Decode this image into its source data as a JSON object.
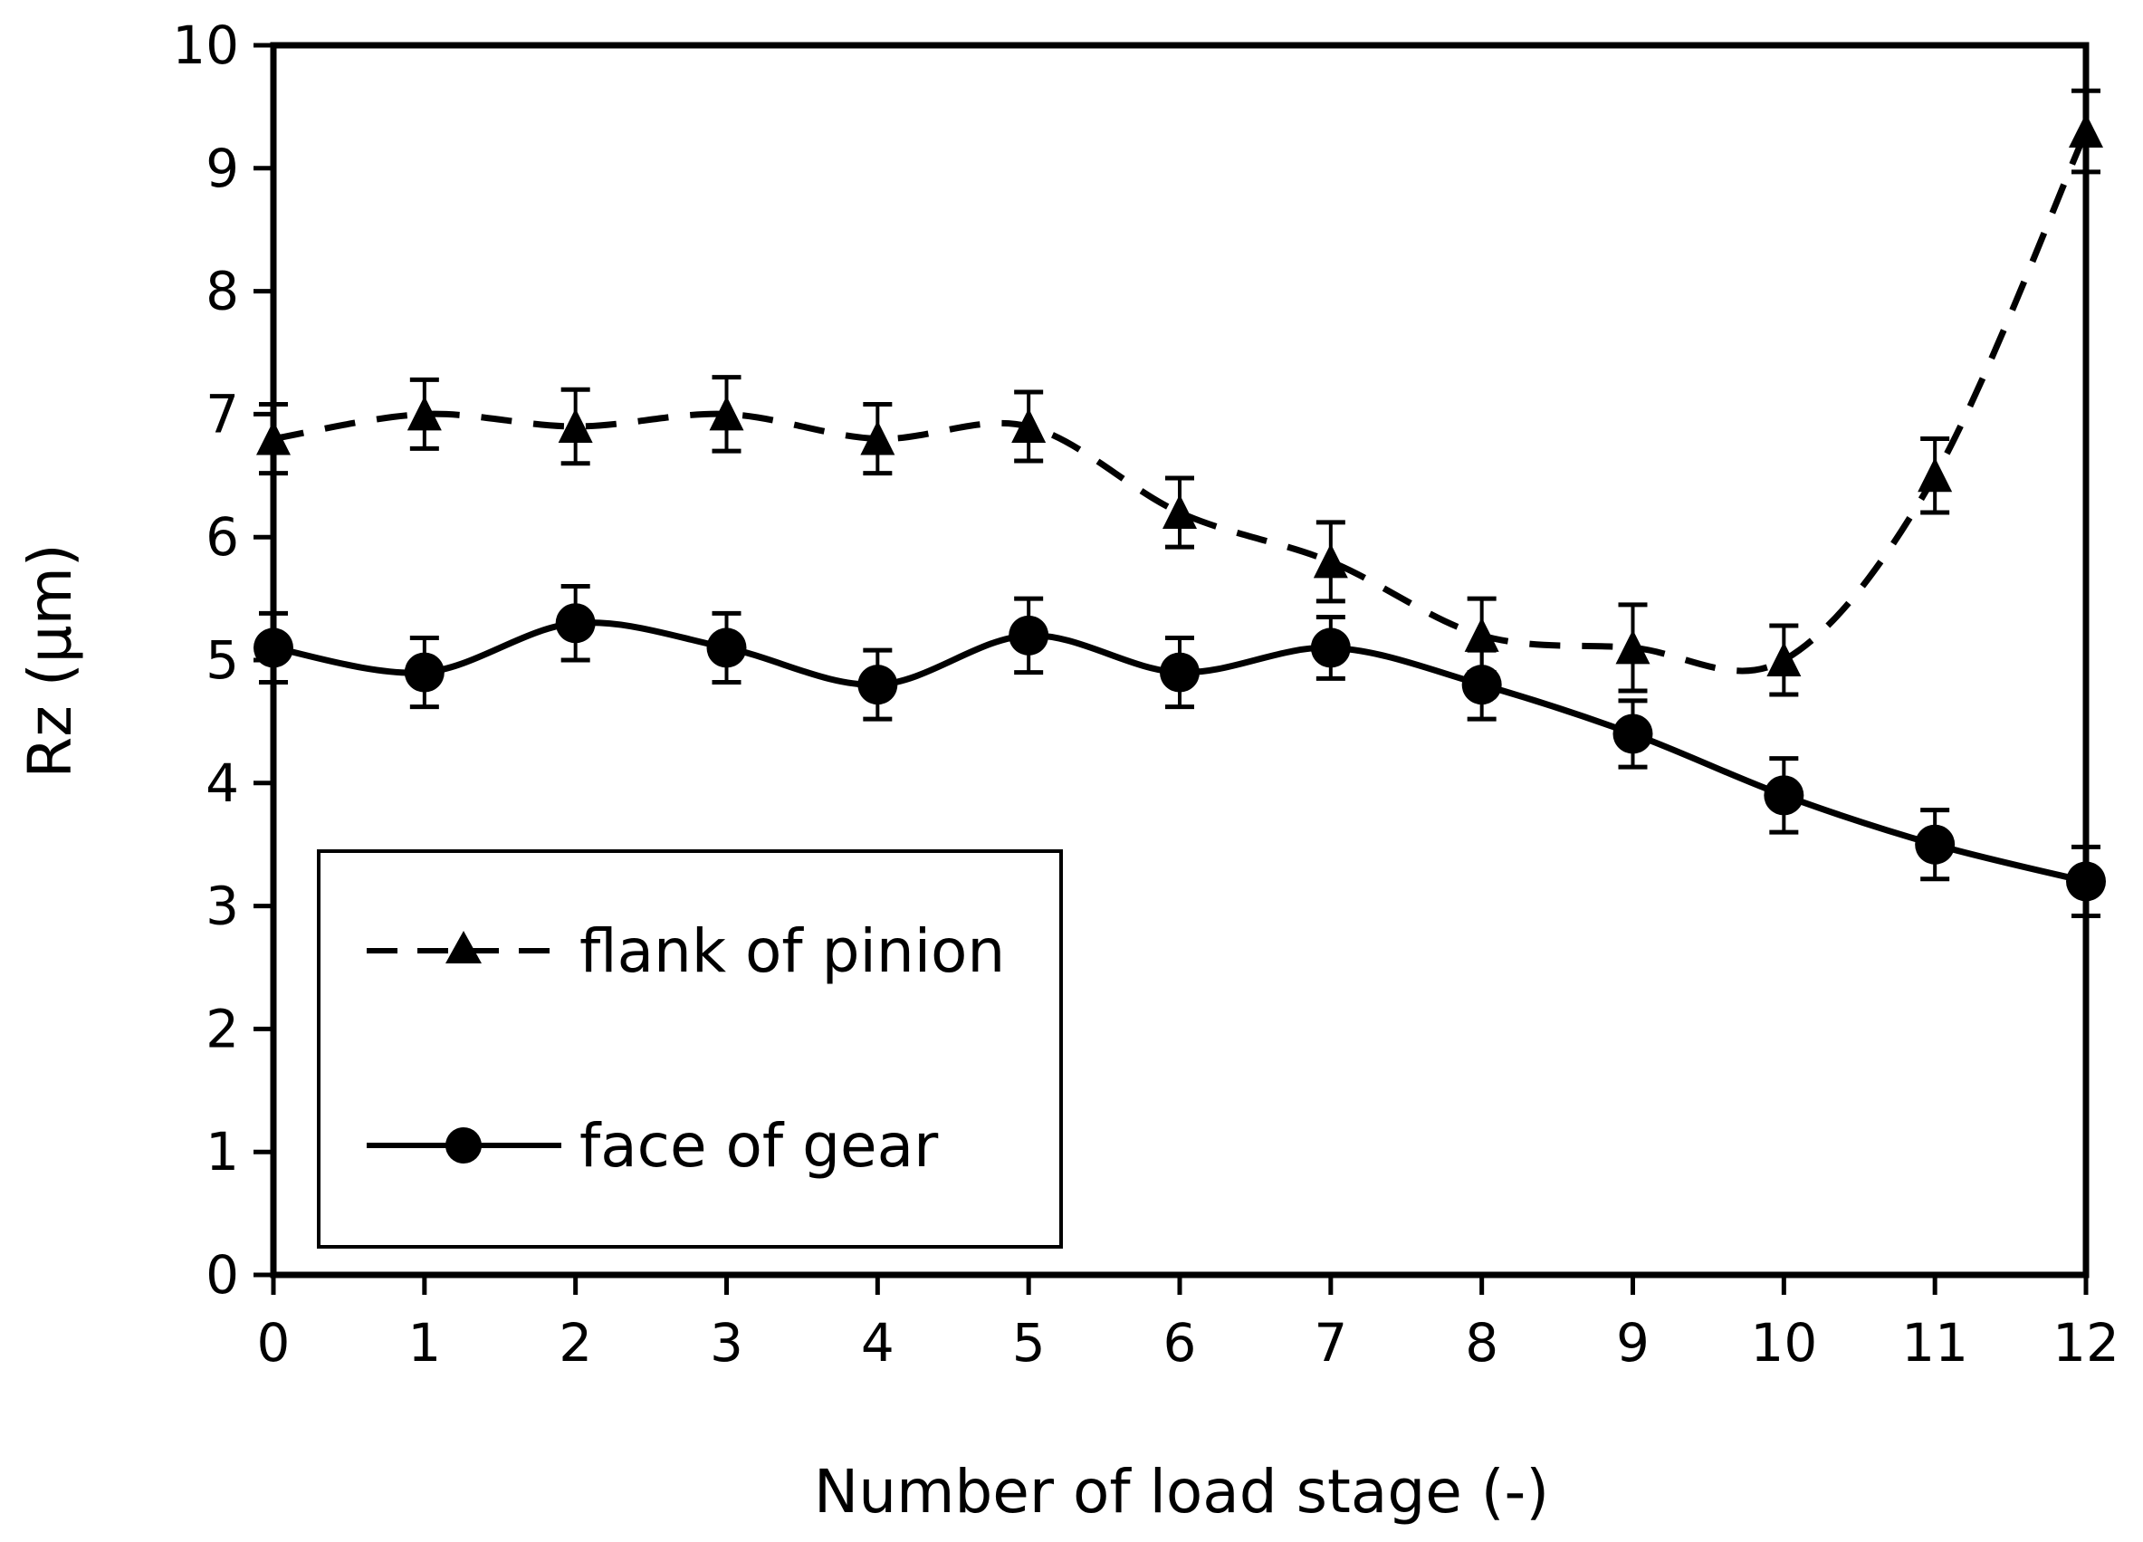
{
  "chart_data": {
    "type": "line",
    "title": "",
    "xlabel": "Number of load stage (-)",
    "ylabel": "Rz  (µm)",
    "xlim": [
      0,
      12
    ],
    "ylim": [
      0,
      10
    ],
    "x_ticks": [
      0,
      1,
      2,
      3,
      4,
      5,
      6,
      7,
      8,
      9,
      10,
      11,
      12
    ],
    "y_ticks": [
      0,
      1,
      2,
      3,
      4,
      5,
      6,
      7,
      8,
      9,
      10
    ],
    "grid": false,
    "legend_position": "bottom-left",
    "series": [
      {
        "name": "flank of pinion",
        "marker": "triangle",
        "line_style": "dashed",
        "x": [
          0,
          1,
          2,
          3,
          4,
          5,
          6,
          7,
          8,
          9,
          10,
          11,
          12
        ],
        "values": [
          6.8,
          7.0,
          6.9,
          7.0,
          6.8,
          6.9,
          6.2,
          5.8,
          5.2,
          5.1,
          5.0,
          6.5,
          9.3
        ],
        "errors": [
          0.28,
          0.28,
          0.3,
          0.3,
          0.28,
          0.28,
          0.28,
          0.32,
          0.3,
          0.35,
          0.28,
          0.3,
          0.33
        ]
      },
      {
        "name": "face of gear",
        "marker": "circle",
        "line_style": "solid",
        "x": [
          0,
          1,
          2,
          3,
          4,
          5,
          6,
          7,
          8,
          9,
          10,
          11,
          12
        ],
        "values": [
          5.1,
          4.9,
          5.3,
          5.1,
          4.8,
          5.2,
          4.9,
          5.1,
          4.8,
          4.4,
          3.9,
          3.5,
          3.2
        ],
        "errors": [
          0.28,
          0.28,
          0.3,
          0.28,
          0.28,
          0.3,
          0.28,
          0.25,
          0.28,
          0.27,
          0.3,
          0.28,
          0.28
        ]
      }
    ]
  }
}
